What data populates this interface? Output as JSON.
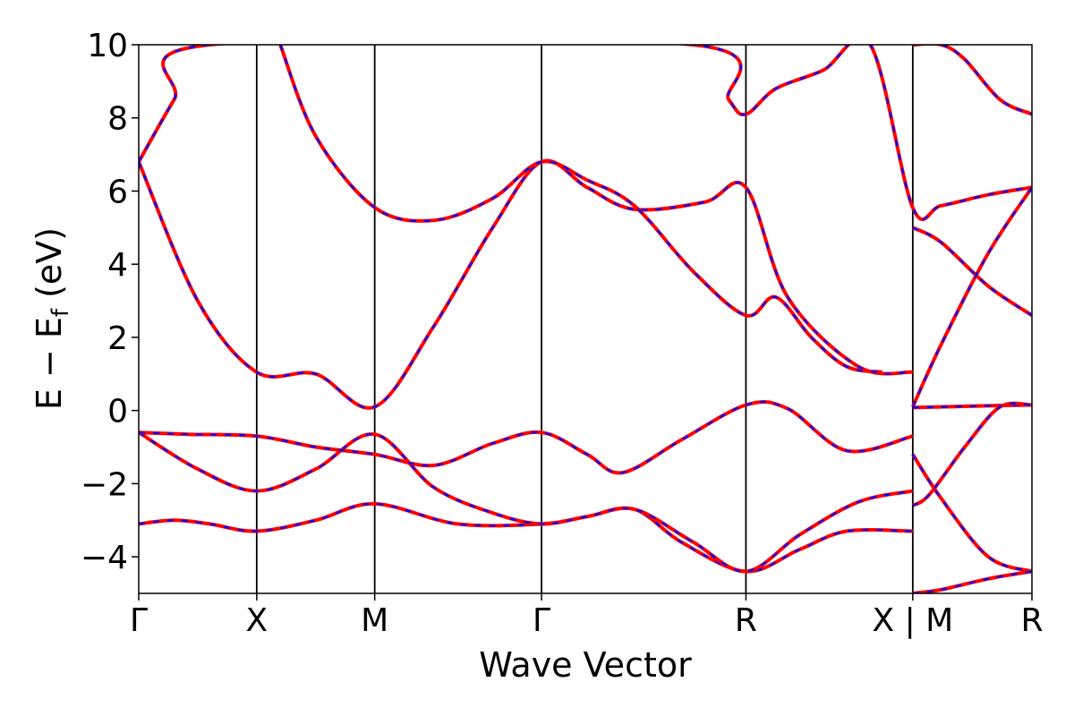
{
  "chart_data": {
    "type": "line",
    "xlabel": "Wave Vector",
    "ylabel_main": "E − E",
    "ylabel_sub": "f",
    "ylabel_unit": "(eV)",
    "ylim": [
      -5,
      10
    ],
    "yticks": [
      -4,
      -2,
      0,
      2,
      4,
      6,
      8,
      10
    ],
    "ytick_labels": [
      "−4",
      "−2",
      "0",
      "2",
      "4",
      "6",
      "8",
      "10"
    ],
    "xlim": [
      0,
      7.57
    ],
    "kpoints": [
      {
        "x": 0,
        "label": "Γ"
      },
      {
        "x": 1.0,
        "label": "X"
      },
      {
        "x": 2.0,
        "label": "M"
      },
      {
        "x": 3.414,
        "label": "Γ"
      },
      {
        "x": 5.146,
        "label": "R"
      },
      {
        "x": 6.56,
        "label": "X | M"
      },
      {
        "x": 7.57,
        "label": "R"
      }
    ],
    "line_colors": {
      "dft": "#ff0000",
      "fit": "#0000ff"
    },
    "bands": [
      {
        "name": "band-1",
        "x": [
          0,
          0.3,
          0.6,
          1.0,
          1.5,
          2.0,
          2.7,
          3.414,
          3.8,
          4.2,
          4.6,
          5.146,
          5.6,
          6.0,
          6.56
        ],
        "y": [
          -3.1,
          -3.0,
          -3.1,
          -3.3,
          -3.0,
          -2.55,
          -3.1,
          -3.1,
          -2.9,
          -2.7,
          -3.6,
          -4.4,
          -3.8,
          -3.3,
          -3.3
        ]
      },
      {
        "name": "band-2",
        "x": [
          0,
          0.5,
          1.0,
          1.5,
          2.0,
          2.5,
          3.0,
          3.414,
          3.8,
          4.2,
          4.7,
          5.146,
          5.6,
          6.1,
          6.56
        ],
        "y": [
          -0.6,
          -1.6,
          -2.2,
          -1.6,
          -0.65,
          -2.1,
          -2.8,
          -3.1,
          -2.9,
          -2.7,
          -3.6,
          -4.4,
          -3.4,
          -2.5,
          -2.2
        ]
      },
      {
        "name": "band-3",
        "x": [
          0,
          0.4,
          1.0,
          1.5,
          2.0,
          2.5,
          3.0,
          3.414,
          3.8,
          4.1,
          4.6,
          5.146,
          5.5,
          6.0,
          6.56
        ],
        "y": [
          -0.6,
          -0.65,
          -0.7,
          -1.0,
          -1.2,
          -1.5,
          -0.9,
          -0.6,
          -1.2,
          -1.7,
          -0.8,
          0.15,
          0.05,
          -1.1,
          -0.7
        ]
      },
      {
        "name": "band-4",
        "x": [
          0,
          0.5,
          1.0,
          1.5,
          2.0,
          2.5,
          3.0,
          3.414,
          3.8,
          4.2,
          4.8,
          5.146,
          5.5,
          6.1,
          6.56
        ],
        "y": [
          6.8,
          3.0,
          1.05,
          1.0,
          0.1,
          2.3,
          5.0,
          6.8,
          6.1,
          5.5,
          5.7,
          6.1,
          3.1,
          1.2,
          1.05
        ]
      },
      {
        "name": "band-5",
        "x": [
          1.2,
          1.5,
          2.0,
          2.5,
          3.0,
          3.414,
          3.8,
          4.2,
          4.7,
          5.146,
          5.4,
          5.7,
          6.0,
          6.3
        ],
        "y": [
          10.0,
          7.5,
          5.55,
          5.2,
          5.8,
          6.8,
          6.3,
          5.6,
          3.8,
          2.6,
          3.1,
          2.0,
          1.2,
          1.05
        ]
      },
      {
        "name": "band-6",
        "x": [
          0,
          0.3,
          0.6,
          4.7,
          5.0,
          5.146,
          5.4,
          5.8,
          6.2,
          6.56,
          6.8,
          7.2,
          7.57
        ],
        "y": [
          6.8,
          8.5,
          10.0,
          10.0,
          8.5,
          8.1,
          8.8,
          9.3,
          10.0,
          5.55,
          5.6,
          5.9,
          6.1
        ]
      },
      {
        "name": "band-7",
        "x": [
          6.56,
          6.8,
          7.2,
          7.57
        ],
        "y": [
          5.0,
          4.6,
          3.4,
          2.6
        ]
      },
      {
        "name": "band-8",
        "x": [
          6.56,
          6.8,
          7.2,
          7.57
        ],
        "y": [
          0.1,
          1.8,
          4.3,
          6.1
        ]
      },
      {
        "name": "band-9",
        "x": [
          6.56,
          6.8,
          7.2,
          7.57
        ],
        "y": [
          0.08,
          0.1,
          0.13,
          0.15
        ]
      },
      {
        "name": "band-10",
        "x": [
          6.56,
          6.8,
          7.2,
          7.57
        ],
        "y": [
          -1.2,
          -2.4,
          -4.0,
          -4.4
        ]
      },
      {
        "name": "band-11",
        "x": [
          6.56,
          6.8,
          7.2,
          7.57
        ],
        "y": [
          -5.0,
          -4.9,
          -4.6,
          -4.4
        ]
      },
      {
        "name": "band-12",
        "x": [
          6.56,
          6.7,
          7.0,
          7.3,
          7.57
        ],
        "y": [
          -2.6,
          -2.3,
          -1.0,
          0.1,
          0.15
        ]
      },
      {
        "name": "band-13",
        "x": [
          6.56,
          6.8,
          7.0,
          7.3,
          7.57
        ],
        "y": [
          10.0,
          10.0,
          9.6,
          8.5,
          8.1
        ]
      }
    ]
  }
}
